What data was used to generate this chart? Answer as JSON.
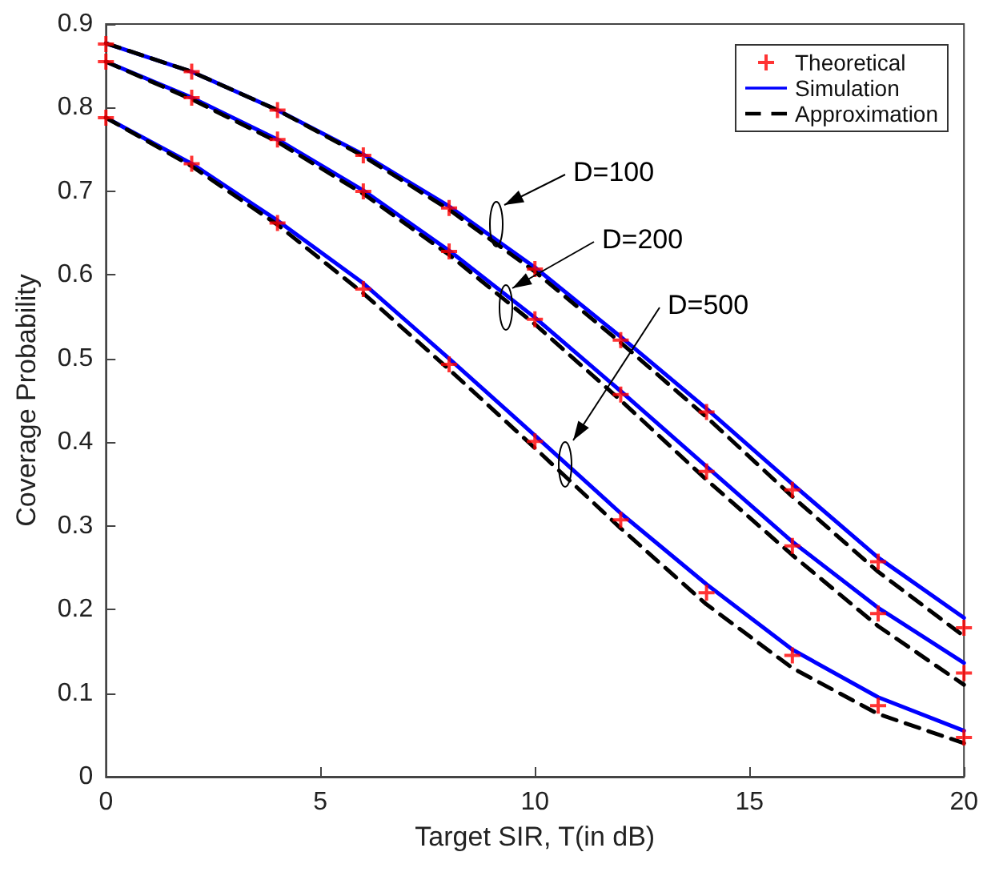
{
  "chart_data": {
    "type": "line",
    "xlabel": "Target SIR, T(in dB)",
    "ylabel": "Coverage Probability",
    "x": [
      0,
      2,
      4,
      6,
      8,
      10,
      12,
      14,
      16,
      18,
      20
    ],
    "xlim": [
      0,
      20
    ],
    "xticks": [
      0,
      5,
      10,
      15,
      20
    ],
    "ylim": [
      0,
      0.9
    ],
    "yticks": [
      0,
      0.1,
      0.2,
      0.3,
      0.4,
      0.5,
      0.6,
      0.7,
      0.8,
      0.9
    ],
    "grid": false,
    "legend": "top right",
    "series": [
      {
        "name": "Theoretical",
        "type": "scatter",
        "color": "#ff0000",
        "marker": "cross",
        "values": [
          0.876,
          0.843,
          0.797,
          0.743,
          0.68,
          0.607,
          0.522,
          0.436,
          0.343,
          0.257,
          0.178
        ]
      },
      {
        "type": "scatter",
        "color": "#ff0000",
        "marker": "cross",
        "values": [
          0.855,
          0.812,
          0.762,
          0.7,
          0.628,
          0.547,
          0.457,
          0.365,
          0.276,
          0.195,
          0.124
        ]
      },
      {
        "type": "scatter",
        "color": "#ff0000",
        "marker": "cross",
        "values": [
          0.788,
          0.733,
          0.662,
          0.583,
          0.493,
          0.401,
          0.307,
          0.22,
          0.145,
          0.085,
          0.047
        ]
      },
      {
        "name": "Simulation",
        "color": "#0000ff",
        "line_style": "solid",
        "marker": "none",
        "values": [
          0.877,
          0.843,
          0.797,
          0.744,
          0.682,
          0.609,
          0.526,
          0.44,
          0.35,
          0.262,
          0.19
        ]
      },
      {
        "color": "#0000ff",
        "line_style": "solid",
        "marker": "none",
        "values": [
          0.855,
          0.812,
          0.762,
          0.701,
          0.629,
          0.549,
          0.461,
          0.371,
          0.281,
          0.202,
          0.136
        ]
      },
      {
        "color": "#0000ff",
        "line_style": "solid",
        "marker": "none",
        "values": [
          0.788,
          0.733,
          0.665,
          0.59,
          0.5,
          0.408,
          0.315,
          0.23,
          0.152,
          0.095,
          0.055
        ]
      },
      {
        "name": "Approximation",
        "color": "#000000",
        "line_style": "dashed",
        "marker": "none",
        "values": [
          0.877,
          0.843,
          0.797,
          0.742,
          0.678,
          0.604,
          0.519,
          0.43,
          0.335,
          0.245,
          0.168
        ]
      },
      {
        "color": "#000000",
        "line_style": "dashed",
        "marker": "none",
        "values": [
          0.855,
          0.81,
          0.759,
          0.697,
          0.624,
          0.541,
          0.45,
          0.355,
          0.265,
          0.18,
          0.11
        ]
      },
      {
        "color": "#000000",
        "line_style": "dashed",
        "marker": "none",
        "values": [
          0.788,
          0.73,
          0.66,
          0.578,
          0.487,
          0.393,
          0.297,
          0.206,
          0.13,
          0.075,
          0.04
        ]
      }
    ],
    "annotations": [
      "D=100",
      "D=200",
      "D=500"
    ]
  }
}
